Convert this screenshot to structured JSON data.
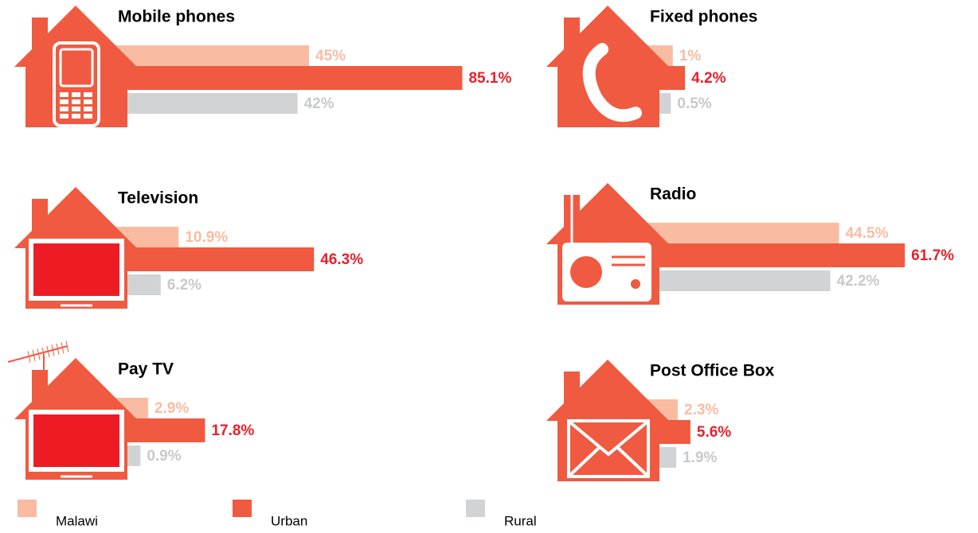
{
  "chart_data": [
    {
      "type": "bar",
      "title": "Mobile phones",
      "values": [
        45,
        85.1,
        42
      ],
      "value_labels": [
        "45%",
        "85.1%",
        "42%"
      ]
    },
    {
      "type": "bar",
      "title": "Fixed phones",
      "values": [
        1,
        4.2,
        0.5
      ],
      "value_labels": [
        "1%",
        "4.2%",
        "0.5%"
      ]
    },
    {
      "type": "bar",
      "title": "Television",
      "values": [
        10.9,
        46.3,
        6.2
      ],
      "value_labels": [
        "10.9%",
        "46.3%",
        "6.2%"
      ]
    },
    {
      "type": "bar",
      "title": "Radio",
      "values": [
        44.5,
        61.7,
        42.2
      ],
      "value_labels": [
        "44.5%",
        "61.7%",
        "42.2%"
      ]
    },
    {
      "type": "bar",
      "title": "Pay TV",
      "values": [
        2.9,
        17.8,
        0.9
      ],
      "value_labels": [
        "2.9%",
        "17.8%",
        "0.9%"
      ]
    },
    {
      "type": "bar",
      "title": "Post Office Box",
      "values": [
        2.3,
        5.6,
        1.9
      ],
      "value_labels": [
        "2.3%",
        "5.6%",
        "1.9%"
      ]
    }
  ],
  "series": [
    {
      "name": "Malawi",
      "color": "#f9bca3",
      "label_color": "#f9bca3"
    },
    {
      "name": "Urban",
      "color": "#f05a40",
      "label_color": "#e8202a"
    },
    {
      "name": "Rural",
      "color": "#d1d3d4",
      "label_color": "#c8c9ca"
    }
  ],
  "xlim": [
    0,
    100
  ]
}
